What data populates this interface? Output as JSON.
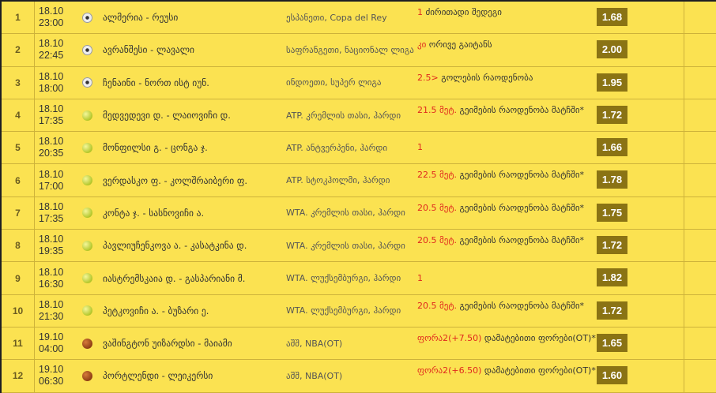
{
  "colors": {
    "row_bg": "#fbe251",
    "odd_bg": "#8a7314",
    "highlight": "#e0281e"
  },
  "rows": [
    {
      "num": "1",
      "date": "18.10",
      "time": "23:00",
      "sport_icon": "soccer-ball-icon",
      "sport": "soccer",
      "match": "ალმერია - რეუსი",
      "league": "ესპანეთი, Copa del Rey",
      "bet_highlight": "1",
      "bet_text": " ძირითადი შედეგი",
      "odd": "1.68"
    },
    {
      "num": "2",
      "date": "18.10",
      "time": "22:45",
      "sport_icon": "soccer-ball-icon",
      "sport": "soccer",
      "match": "ავრანშესი - ლავალი",
      "league": "საფრანგეთი, ნაციონალ ლიგა",
      "bet_highlight": "კი",
      "bet_text": " ორივე გაიტანს",
      "odd": "2.00"
    },
    {
      "num": "3",
      "date": "18.10",
      "time": "18:00",
      "sport_icon": "soccer-ball-icon",
      "sport": "soccer",
      "match": "ჩენაინი - ნორთ ისტ იუნ.",
      "league": "ინდოეთი, სუპერ ლიგა",
      "bet_highlight": "2.5>",
      "bet_text": " გოლების რაოდენობა",
      "odd": "1.95"
    },
    {
      "num": "4",
      "date": "18.10",
      "time": "17:35",
      "sport_icon": "tennis-ball-icon",
      "sport": "tennis",
      "match": "მედვედევი დ. - ლაიოვიჩი დ.",
      "league": "ATP. კრემლის თასი, ჰარდი",
      "bet_highlight": "21.5 მეტ.",
      "bet_text": " გეიმების რაოდენობა მატჩში*",
      "odd": "1.72"
    },
    {
      "num": "5",
      "date": "18.10",
      "time": "20:35",
      "sport_icon": "tennis-ball-icon",
      "sport": "tennis",
      "match": "მონფილსი გ. - ცონგა ჯ.",
      "league": "ATP. ანტვერპენი, ჰარდი",
      "bet_highlight": "1",
      "bet_text": "",
      "odd": "1.66"
    },
    {
      "num": "6",
      "date": "18.10",
      "time": "17:00",
      "sport_icon": "tennis-ball-icon",
      "sport": "tennis",
      "match": "ვერდასკო ფ. - კოლშრაიბერი ფ.",
      "league": "ATP. სტოკჰოლმი, ჰარდი",
      "bet_highlight": "22.5 მეტ.",
      "bet_text": " გეიმების რაოდენობა მატჩში*",
      "odd": "1.78"
    },
    {
      "num": "7",
      "date": "18.10",
      "time": "17:35",
      "sport_icon": "tennis-ball-icon",
      "sport": "tennis",
      "match": "კონტა ჯ. - სასნოვიჩი ა.",
      "league": "WTA. კრემლის თასი, ჰარდი",
      "bet_highlight": "20.5 მეტ.",
      "bet_text": " გეიმების რაოდენობა მატჩში*",
      "odd": "1.75"
    },
    {
      "num": "8",
      "date": "18.10",
      "time": "19:35",
      "sport_icon": "tennis-ball-icon",
      "sport": "tennis",
      "match": "პავლიუჩენკოვა ა. - კასატკინა დ.",
      "league": "WTA. კრემლის თასი, ჰარდი",
      "bet_highlight": "20.5 მეტ.",
      "bet_text": " გეიმების რაოდენობა მატჩში*",
      "odd": "1.72"
    },
    {
      "num": "9",
      "date": "18.10",
      "time": "16:30",
      "sport_icon": "tennis-ball-icon",
      "sport": "tennis",
      "match": "იასტრემსკაია დ. - გასპარიანი მ.",
      "league": "WTA. ლუქსემბურგი, ჰარდი",
      "bet_highlight": "1",
      "bet_text": "",
      "odd": "1.82"
    },
    {
      "num": "10",
      "date": "18.10",
      "time": "21:30",
      "sport_icon": "tennis-ball-icon",
      "sport": "tennis",
      "match": "პეტკოვიჩი ა. - ბუზარი ე.",
      "league": "WTA. ლუქსემბურგი, ჰარდი",
      "bet_highlight": "20.5 მეტ.",
      "bet_text": " გეიმების რაოდენობა მატჩში*",
      "odd": "1.72"
    },
    {
      "num": "11",
      "date": "19.10",
      "time": "04:00",
      "sport_icon": "basketball-icon",
      "sport": "basket",
      "match": "ვაშინგტონ უიზარდსი - მაიამი",
      "league": "აშშ, NBA(OT)",
      "bet_highlight": "ფორა2(+7.50)",
      "bet_text": " დამატებითი ფორები(OT)*",
      "odd": "1.65"
    },
    {
      "num": "12",
      "date": "19.10",
      "time": "06:30",
      "sport_icon": "basketball-icon",
      "sport": "basket",
      "match": "პორტლენდი - ლეიკერსი",
      "league": "აშშ, NBA(OT)",
      "bet_highlight": "ფორა2(+6.50)",
      "bet_text": " დამატებითი ფორები(OT)*",
      "odd": "1.60"
    }
  ]
}
